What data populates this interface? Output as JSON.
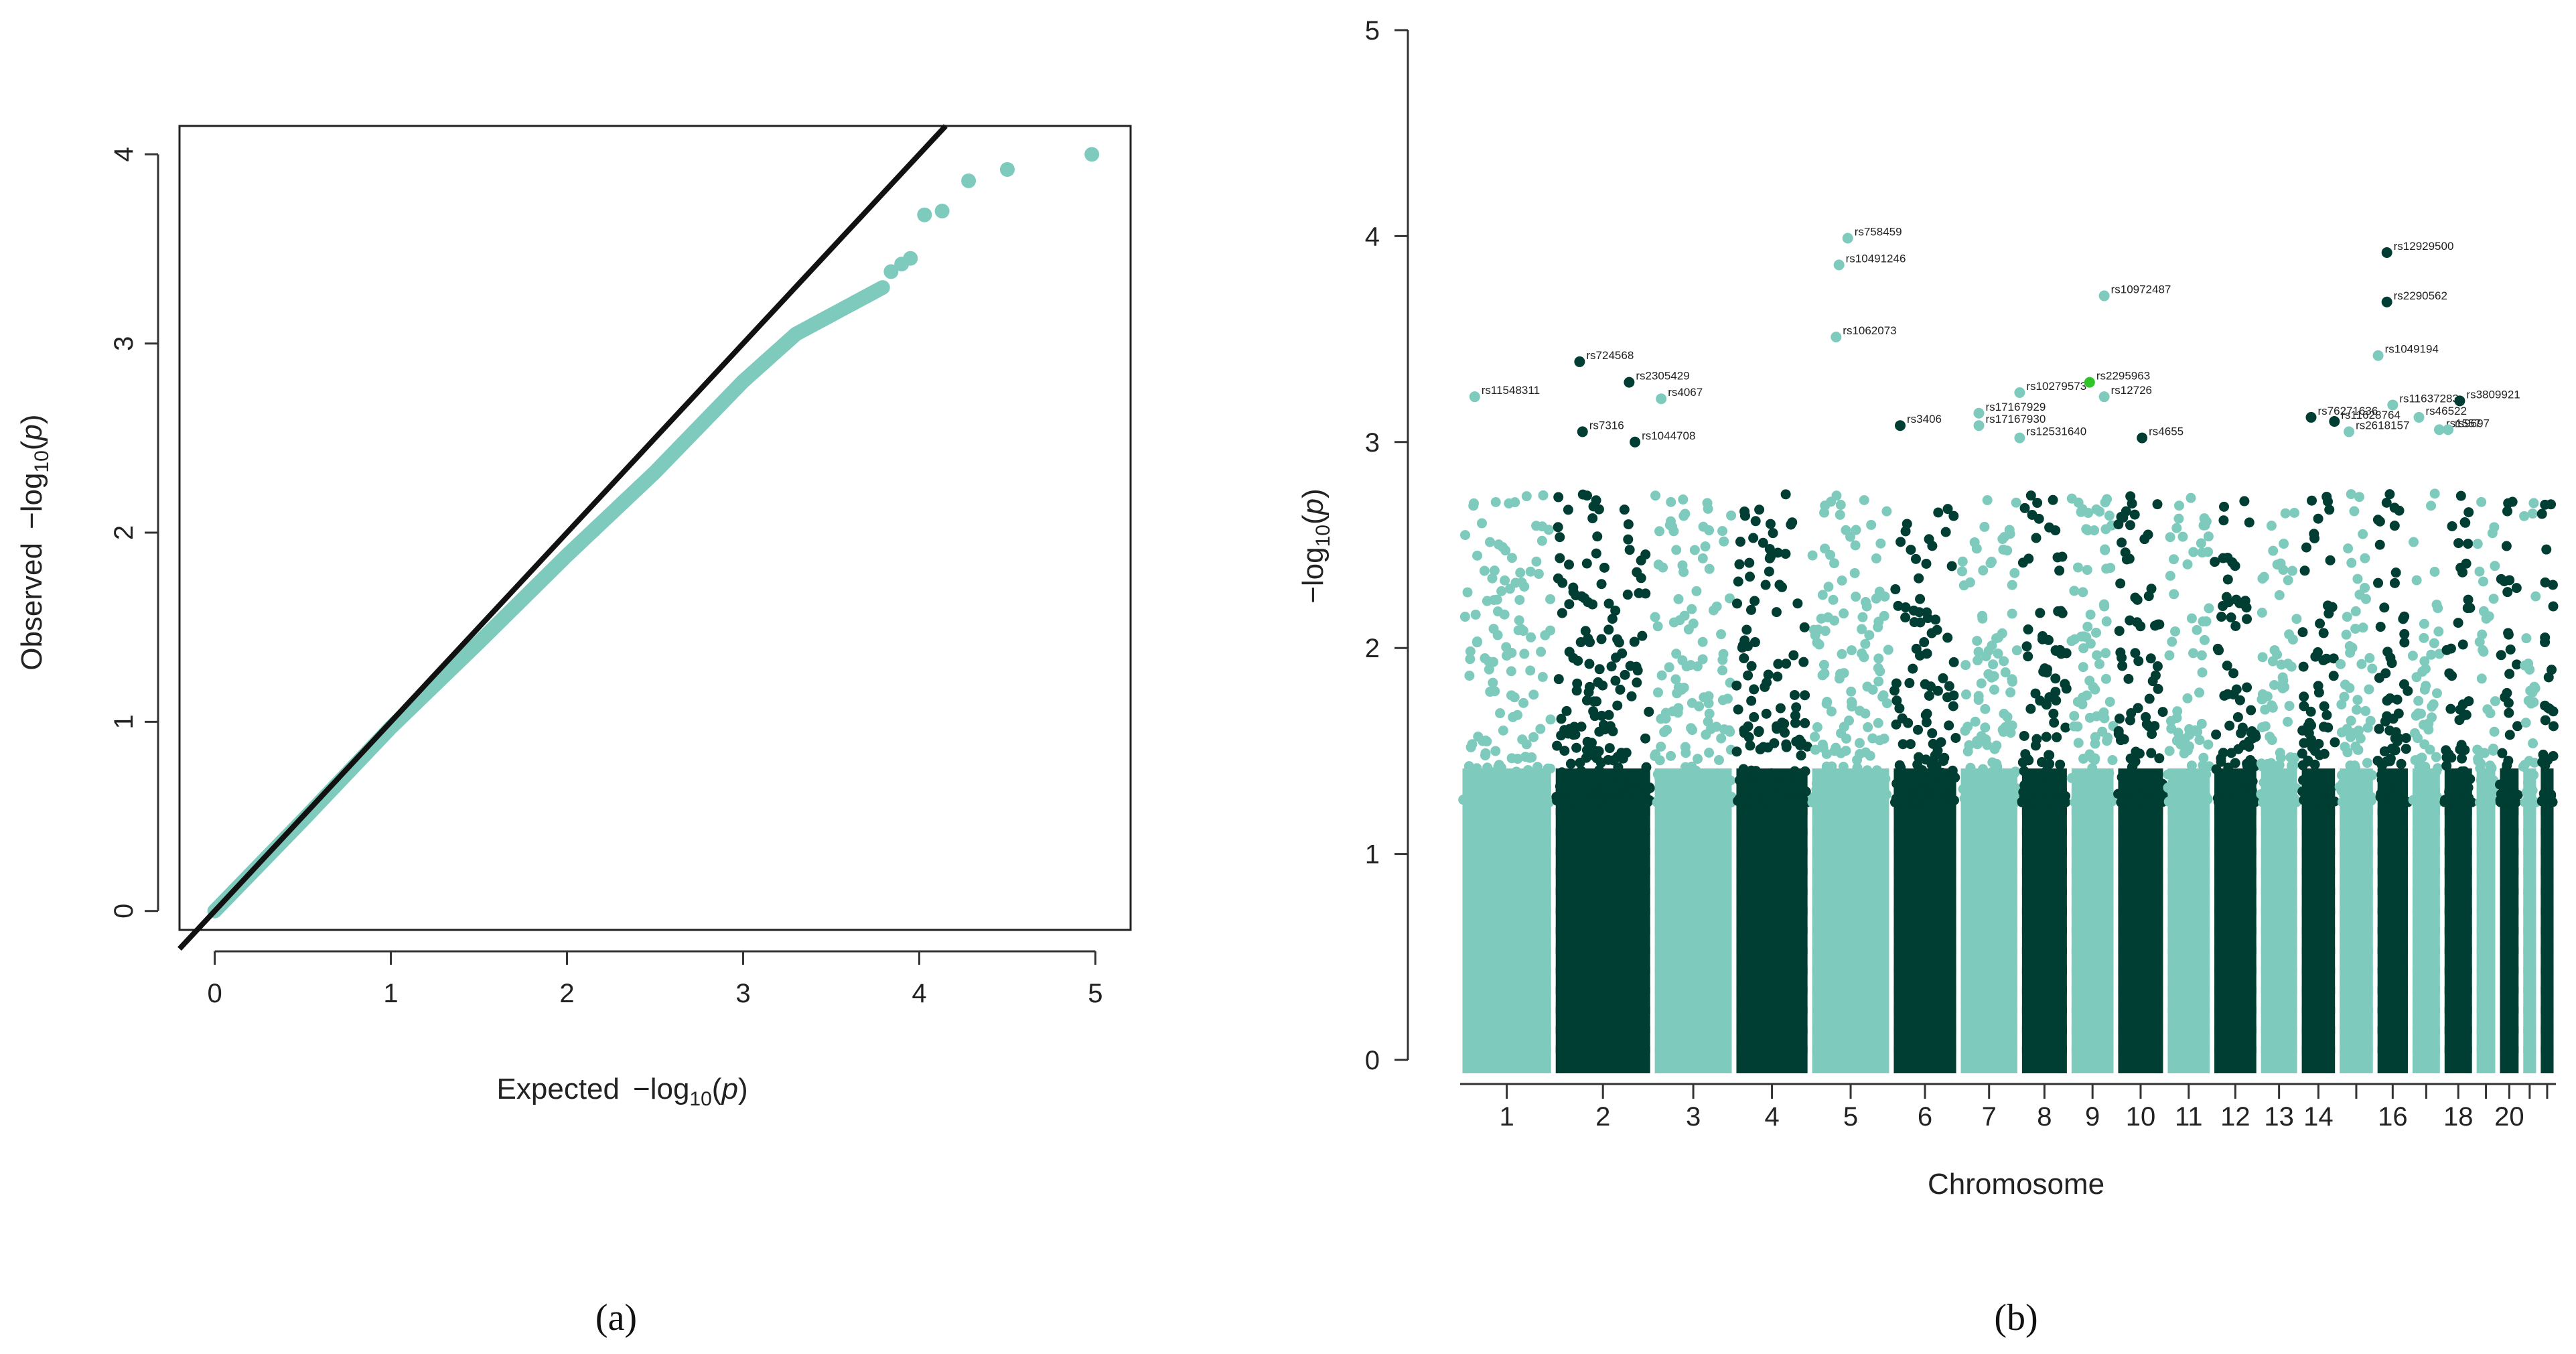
{
  "colors": {
    "teal": "#7ECBBE",
    "dark": "#003D32",
    "highlight": "#2EC52A",
    "line": "#111111"
  },
  "chart_data": [
    {
      "panel": "(a)",
      "type": "scatter",
      "title": "",
      "xlabel": "Expected",
      "ylabel": "Observed",
      "axis_expr": "−log₁₀(p)",
      "xlim": [
        -0.2,
        5.2
      ],
      "ylim": [
        -0.1,
        4.15
      ],
      "xticks": [
        0,
        1,
        2,
        3,
        4,
        5
      ],
      "yticks": [
        0,
        1,
        2,
        3,
        4
      ],
      "reference_line": {
        "slope": 1,
        "intercept": 0
      },
      "curve": [
        [
          0,
          0
        ],
        [
          0.5,
          0.48
        ],
        [
          1,
          0.97
        ],
        [
          1.5,
          1.42
        ],
        [
          2,
          1.88
        ],
        [
          2.5,
          2.32
        ],
        [
          3,
          2.8
        ],
        [
          3.3,
          3.05
        ],
        [
          3.6,
          3.2
        ],
        [
          3.8,
          3.3
        ]
      ],
      "tail_points": [
        [
          3.84,
          3.38
        ],
        [
          3.9,
          3.42
        ],
        [
          3.95,
          3.45
        ],
        [
          4.03,
          3.68
        ],
        [
          4.13,
          3.7
        ],
        [
          4.28,
          3.86
        ],
        [
          4.5,
          3.92
        ],
        [
          4.98,
          4.0
        ]
      ]
    },
    {
      "panel": "(b)",
      "type": "scatter",
      "title": "",
      "xlabel": "Chromosome",
      "ylabel": "−log₁₀(p)",
      "ylim": [
        0,
        5
      ],
      "yticks": [
        0,
        1,
        2,
        3,
        4,
        5
      ],
      "x_tick_labels": [
        "1",
        "2",
        "3",
        "4",
        "5",
        "6",
        "7",
        "8",
        "9",
        "10",
        "11",
        "12",
        "13",
        "14",
        "16",
        "18",
        "20"
      ],
      "chromosomes": [
        {
          "chr": 1,
          "start": 0,
          "end": 3.2,
          "color": "teal"
        },
        {
          "chr": 2,
          "start": 3.2,
          "end": 6.6,
          "color": "dark"
        },
        {
          "chr": 3,
          "start": 6.6,
          "end": 9.4,
          "color": "teal"
        },
        {
          "chr": 4,
          "start": 9.4,
          "end": 12.0,
          "color": "dark"
        },
        {
          "chr": 5,
          "start": 12.0,
          "end": 14.8,
          "color": "teal"
        },
        {
          "chr": 6,
          "start": 14.8,
          "end": 17.1,
          "color": "dark"
        },
        {
          "chr": 7,
          "start": 17.1,
          "end": 19.2,
          "color": "teal"
        },
        {
          "chr": 8,
          "start": 19.2,
          "end": 20.9,
          "color": "dark"
        },
        {
          "chr": 9,
          "start": 20.9,
          "end": 22.5,
          "color": "teal"
        },
        {
          "chr": 10,
          "start": 22.5,
          "end": 24.2,
          "color": "dark"
        },
        {
          "chr": 11,
          "start": 24.2,
          "end": 25.8,
          "color": "teal"
        },
        {
          "chr": 12,
          "start": 25.8,
          "end": 27.4,
          "color": "dark"
        },
        {
          "chr": 13,
          "start": 27.4,
          "end": 28.8,
          "color": "teal"
        },
        {
          "chr": 14,
          "start": 28.8,
          "end": 30.1,
          "color": "dark"
        },
        {
          "chr": 15,
          "start": 30.1,
          "end": 31.4,
          "color": "teal"
        },
        {
          "chr": 16,
          "start": 31.4,
          "end": 32.6,
          "color": "dark"
        },
        {
          "chr": 17,
          "start": 32.6,
          "end": 33.7,
          "color": "teal"
        },
        {
          "chr": 18,
          "start": 33.7,
          "end": 34.8,
          "color": "dark"
        },
        {
          "chr": 19,
          "start": 34.8,
          "end": 35.6,
          "color": "teal"
        },
        {
          "chr": 20,
          "start": 35.6,
          "end": 36.4,
          "color": "dark"
        },
        {
          "chr": 21,
          "start": 36.4,
          "end": 37.0,
          "color": "teal"
        },
        {
          "chr": 22,
          "start": 37.0,
          "end": 37.6,
          "color": "dark"
        }
      ],
      "labeled_snps": [
        {
          "rs": "rs11548311",
          "pos": 0.5,
          "p": 3.22,
          "color": "teal"
        },
        {
          "rs": "rs724568",
          "pos": 4.1,
          "p": 3.39,
          "color": "dark"
        },
        {
          "rs": "rs7316",
          "pos": 4.2,
          "p": 3.05,
          "color": "dark"
        },
        {
          "rs": "rs2305429",
          "pos": 5.8,
          "p": 3.29,
          "color": "dark"
        },
        {
          "rs": "rs1044708",
          "pos": 6.0,
          "p": 3.0,
          "color": "dark"
        },
        {
          "rs": "rs4067",
          "pos": 6.9,
          "p": 3.21,
          "color": "teal"
        },
        {
          "rs": "rs758459",
          "pos": 13.3,
          "p": 3.99,
          "color": "teal"
        },
        {
          "rs": "rs10491246",
          "pos": 13.0,
          "p": 3.86,
          "color": "teal"
        },
        {
          "rs": "rs1062073",
          "pos": 12.9,
          "p": 3.51,
          "color": "teal"
        },
        {
          "rs": "rs3406",
          "pos": 15.1,
          "p": 3.08,
          "color": "dark"
        },
        {
          "rs": "rs17167929",
          "pos": 17.8,
          "p": 3.14,
          "color": "teal"
        },
        {
          "rs": "rs17167930",
          "pos": 17.8,
          "p": 3.08,
          "color": "teal"
        },
        {
          "rs": "rs10279573",
          "pos": 19.2,
          "p": 3.24,
          "color": "teal"
        },
        {
          "rs": "rs12531640",
          "pos": 19.2,
          "p": 3.02,
          "color": "teal"
        },
        {
          "rs": "rs2295963",
          "pos": 21.6,
          "p": 3.29,
          "color": "highlight"
        },
        {
          "rs": "rs12726",
          "pos": 22.1,
          "p": 3.22,
          "color": "teal"
        },
        {
          "rs": "rs10972487",
          "pos": 22.1,
          "p": 3.71,
          "color": "teal"
        },
        {
          "rs": "rs4655",
          "pos": 23.4,
          "p": 3.02,
          "color": "dark"
        },
        {
          "rs": "rs76271636",
          "pos": 29.2,
          "p": 3.12,
          "color": "dark"
        },
        {
          "rs": "rs11628764",
          "pos": 30.0,
          "p": 3.1,
          "color": "dark"
        },
        {
          "rs": "rs2618157",
          "pos": 30.5,
          "p": 3.05,
          "color": "teal"
        },
        {
          "rs": "rs12929500",
          "pos": 31.8,
          "p": 3.92,
          "color": "dark"
        },
        {
          "rs": "rs2290562",
          "pos": 31.8,
          "p": 3.68,
          "color": "dark"
        },
        {
          "rs": "rs1049194",
          "pos": 31.5,
          "p": 3.42,
          "color": "teal"
        },
        {
          "rs": "rs11637283",
          "pos": 32.0,
          "p": 3.18,
          "color": "teal"
        },
        {
          "rs": "rs46522",
          "pos": 32.9,
          "p": 3.12,
          "color": "teal"
        },
        {
          "rs": "rs3809921",
          "pos": 34.3,
          "p": 3.2,
          "color": "dark"
        },
        {
          "rs": "rs1557",
          "pos": 33.6,
          "p": 3.06,
          "color": "teal"
        },
        {
          "rs": "rs9697",
          "pos": 33.9,
          "p": 3.06,
          "color": "teal"
        }
      ]
    }
  ],
  "panel_a": {
    "xlabel_word": "Expected",
    "ylabel_word": "Observed",
    "panel_label": "(a)"
  },
  "panel_b": {
    "xlabel": "Chromosome",
    "panel_label": "(b)"
  }
}
